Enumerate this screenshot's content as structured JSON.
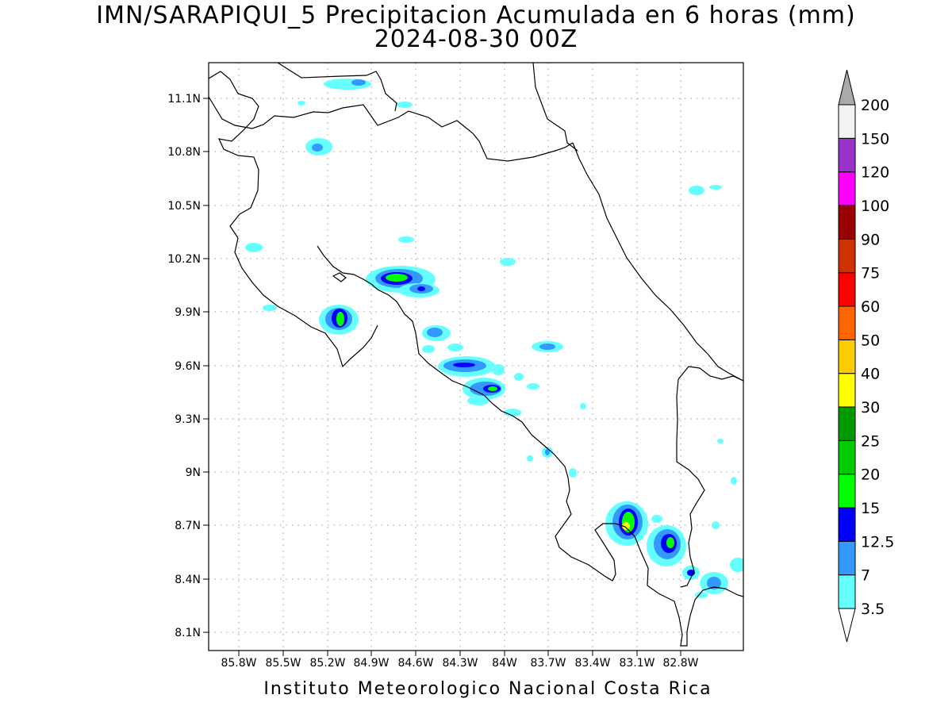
{
  "title": {
    "line1": "IMN/SARAPIQUI_5 Precipitacion Acumulada en 6 horas (mm)",
    "line2": "2024-08-30 00Z"
  },
  "footer": "Instituto Meteorologico Nacional Costa Rica",
  "map": {
    "lon_range": [
      -86.0,
      -83.0
    ],
    "lat_range": [
      8.0,
      11.2
    ],
    "x_ticks": [
      "85.8W",
      "85.5W",
      "85.2W",
      "84.9W",
      "84.6W",
      "84.3W",
      "84W",
      "83.7W",
      "83.4W",
      "83.1W",
      "82.8W"
    ],
    "y_ticks": [
      "11.1N",
      "10.8N",
      "10.5N",
      "10.2N",
      "9.9N",
      "9.6N",
      "9.3N",
      "9N",
      "8.7N",
      "8.4N",
      "8.1N"
    ],
    "grid": true
  },
  "legend": {
    "levels": [
      "3.5",
      "7",
      "12.5",
      "15",
      "20",
      "25",
      "30",
      "40",
      "50",
      "60",
      "75",
      "90",
      "100",
      "120",
      "150",
      "200"
    ],
    "colors": [
      "#ffffff",
      "#66ffff",
      "#3399ff",
      "#0000ff",
      "#00ff00",
      "#00cc00",
      "#009900",
      "#ffff00",
      "#ffcc00",
      "#ff6600",
      "#ff0000",
      "#cc3300",
      "#990000",
      "#ff00ff",
      "#9933cc",
      "#f2f2f2",
      "#aaaaaa"
    ]
  }
}
